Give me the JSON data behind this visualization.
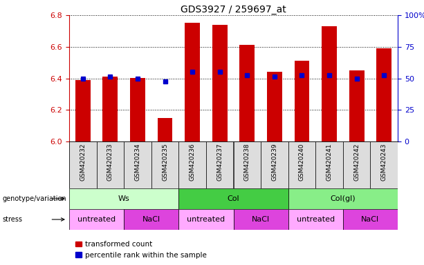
{
  "title": "GDS3927 / 259697_at",
  "samples": [
    "GSM420232",
    "GSM420233",
    "GSM420234",
    "GSM420235",
    "GSM420236",
    "GSM420237",
    "GSM420238",
    "GSM420239",
    "GSM420240",
    "GSM420241",
    "GSM420242",
    "GSM420243"
  ],
  "bar_values": [
    6.39,
    6.41,
    6.4,
    6.15,
    6.75,
    6.74,
    6.61,
    6.44,
    6.51,
    6.73,
    6.45,
    6.59
  ],
  "percentile_values": [
    6.4,
    6.41,
    6.4,
    6.38,
    6.44,
    6.44,
    6.42,
    6.41,
    6.42,
    6.42,
    6.4,
    6.42
  ],
  "ymin": 6.0,
  "ymax": 6.8,
  "yticks_left": [
    6.0,
    6.2,
    6.4,
    6.6,
    6.8
  ],
  "yticks_right": [
    0,
    25,
    50,
    75,
    100
  ],
  "bar_color": "#cc0000",
  "percentile_color": "#0000cc",
  "bar_width": 0.55,
  "genotype_groups": [
    {
      "label": "Ws",
      "start": 0,
      "end": 3,
      "color": "#ccffcc"
    },
    {
      "label": "Col",
      "start": 4,
      "end": 7,
      "color": "#44cc44"
    },
    {
      "label": "Col(gl)",
      "start": 8,
      "end": 11,
      "color": "#88ee88"
    }
  ],
  "stress_groups": [
    {
      "label": "untreated",
      "start": 0,
      "end": 1,
      "color": "#ffaaff"
    },
    {
      "label": "NaCl",
      "start": 2,
      "end": 3,
      "color": "#dd44dd"
    },
    {
      "label": "untreated",
      "start": 4,
      "end": 5,
      "color": "#ffaaff"
    },
    {
      "label": "NaCl",
      "start": 6,
      "end": 7,
      "color": "#dd44dd"
    },
    {
      "label": "untreated",
      "start": 8,
      "end": 9,
      "color": "#ffaaff"
    },
    {
      "label": "NaCl",
      "start": 10,
      "end": 11,
      "color": "#dd44dd"
    }
  ],
  "legend_items": [
    {
      "label": "transformed count",
      "color": "#cc0000"
    },
    {
      "label": "percentile rank within the sample",
      "color": "#0000cc"
    }
  ],
  "bg_color": "#ffffff",
  "tick_label_color_left": "#cc0000",
  "tick_label_color_right": "#0000cc"
}
